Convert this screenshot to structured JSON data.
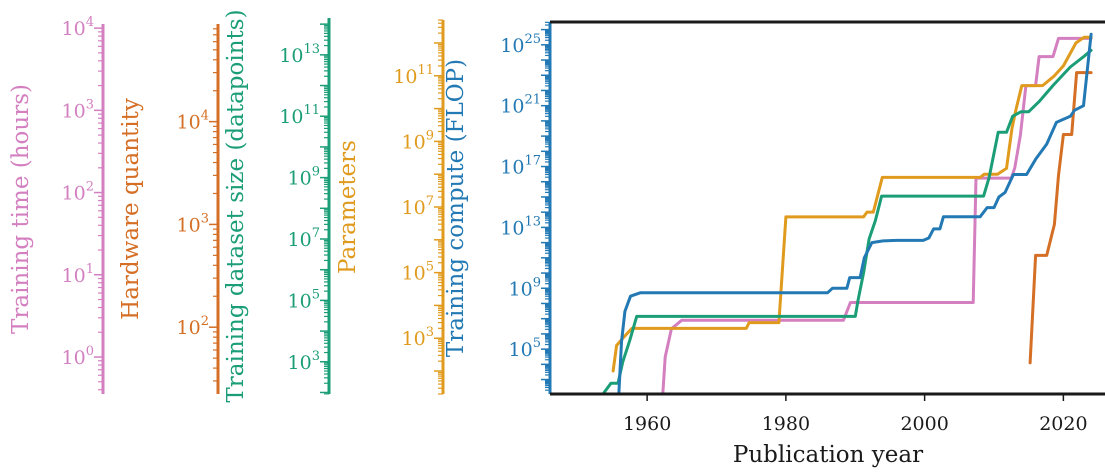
{
  "chart_data": {
    "type": "line",
    "xlabel": "Publication year",
    "xlim": [
      1946,
      2026
    ],
    "x_ticks": [
      1960,
      1980,
      2000,
      2020
    ],
    "grid": false,
    "legend": "none",
    "side_axes": [
      {
        "key": "training_time",
        "label": "Training time (hours)",
        "color": "#d37fc0",
        "scale": "log",
        "ticks": [
          {
            "value": 1,
            "base": "10",
            "exp": "0"
          },
          {
            "value": 10,
            "base": "10",
            "exp": "1"
          },
          {
            "value": 100,
            "base": "10",
            "exp": "2"
          },
          {
            "value": 1000,
            "base": "10",
            "exp": "3"
          },
          {
            "value": 10000,
            "base": "10",
            "exp": "4"
          }
        ]
      },
      {
        "key": "hardware_quantity",
        "label": "Hardware quantity",
        "color": "#d46f25",
        "scale": "log",
        "ticks": [
          {
            "value": 100,
            "base": "10",
            "exp": "2"
          },
          {
            "value": 1000,
            "base": "10",
            "exp": "3"
          },
          {
            "value": 10000,
            "base": "10",
            "exp": "4"
          }
        ]
      },
      {
        "key": "dataset_size",
        "label": "Training dataset size (datapoints)",
        "color": "#1b9e77",
        "scale": "log",
        "ticks": [
          {
            "value": 1000.0,
            "base": "10",
            "exp": "3"
          },
          {
            "value": 100000.0,
            "base": "10",
            "exp": "5"
          },
          {
            "value": 10000000.0,
            "base": "10",
            "exp": "7"
          },
          {
            "value": 1000000000.0,
            "base": "10",
            "exp": "9"
          },
          {
            "value": 100000000000.0,
            "base": "10",
            "exp": "11"
          },
          {
            "value": 10000000000000.0,
            "base": "10",
            "exp": "13"
          }
        ]
      },
      {
        "key": "parameters",
        "label": "Parameters",
        "color": "#e09b1e",
        "scale": "log",
        "ticks": [
          {
            "value": 1000.0,
            "base": "10",
            "exp": "3"
          },
          {
            "value": 100000.0,
            "base": "10",
            "exp": "5"
          },
          {
            "value": 10000000.0,
            "base": "10",
            "exp": "7"
          },
          {
            "value": 1000000000.0,
            "base": "10",
            "exp": "9"
          },
          {
            "value": 100000000000.0,
            "base": "10",
            "exp": "11"
          }
        ]
      },
      {
        "key": "compute",
        "label": "Training compute (FLOP)",
        "color": "#2379b4",
        "scale": "log",
        "ticks": [
          {
            "value": 100000.0,
            "base": "10",
            "exp": "5"
          },
          {
            "value": 1000000000.0,
            "base": "10",
            "exp": "9"
          },
          {
            "value": 10000000000000.0,
            "base": "10",
            "exp": "13"
          },
          {
            "value": 1e+17,
            "base": "10",
            "exp": "17"
          },
          {
            "value": 1e+21,
            "base": "10",
            "exp": "21"
          },
          {
            "value": 1e+25,
            "base": "10",
            "exp": "25"
          }
        ]
      }
    ],
    "series": [
      {
        "axis": "training_time",
        "color": "#d37fc0",
        "points": [
          [
            1962.2,
            0.3
          ],
          [
            1962.6,
            1.0
          ],
          [
            1963.5,
            2.2
          ],
          [
            1965,
            2.8
          ],
          [
            1970,
            2.8
          ],
          [
            1980,
            2.8
          ],
          [
            1988.3,
            2.8
          ],
          [
            1989.3,
            4.6
          ],
          [
            2000,
            4.6
          ],
          [
            2007,
            4.6
          ],
          [
            2007.4,
            150
          ],
          [
            2010,
            150
          ],
          [
            2011,
            150
          ],
          [
            2012.5,
            150
          ],
          [
            2013,
            200
          ],
          [
            2013.8,
            500
          ],
          [
            2014.6,
            2000
          ],
          [
            2016,
            2000
          ],
          [
            2016.5,
            4500
          ],
          [
            2018.5,
            4500
          ],
          [
            2019.3,
            7500
          ],
          [
            2024,
            7500
          ]
        ]
      },
      {
        "axis": "hardware_quantity",
        "color": "#d46f25",
        "points": [
          [
            2015.2,
            45
          ],
          [
            2016,
            500
          ],
          [
            2017.6,
            500
          ],
          [
            2018.7,
            1000
          ],
          [
            2019.3,
            3000
          ],
          [
            2020,
            7500
          ],
          [
            2021.2,
            7500
          ],
          [
            2021.9,
            30000
          ],
          [
            2024,
            30000
          ]
        ]
      },
      {
        "axis": "dataset_size",
        "color": "#1b9e77",
        "points": [
          [
            1953.8,
            100
          ],
          [
            1954.8,
            200
          ],
          [
            1955.8,
            200
          ],
          [
            1956.5,
            1000
          ],
          [
            1957.5,
            5000
          ],
          [
            1958.5,
            30000
          ],
          [
            1960,
            30000
          ],
          [
            1980,
            30000
          ],
          [
            1990,
            30000
          ],
          [
            1990.4,
            100000
          ],
          [
            1991.2,
            800000
          ],
          [
            1992,
            10000000
          ],
          [
            1992.9,
            40000000
          ],
          [
            1993.8,
            250000000
          ],
          [
            2000,
            250000000
          ],
          [
            2005,
            250000000
          ],
          [
            2008.5,
            250000000
          ],
          [
            2009.3,
            1000000000
          ],
          [
            2010.6,
            30000000000
          ],
          [
            2011.8,
            30000000000
          ],
          [
            2012.7,
            100000000000
          ],
          [
            2013.9,
            140000000000
          ],
          [
            2015,
            140000000000
          ],
          [
            2016.5,
            300000000000
          ],
          [
            2018.5,
            1000000000000
          ],
          [
            2021,
            4000000000000
          ],
          [
            2023,
            9000000000000
          ],
          [
            2024,
            14000000000000
          ]
        ]
      },
      {
        "axis": "parameters",
        "color": "#e09b1e",
        "points": [
          [
            1955.1,
            100
          ],
          [
            1955.6,
            600
          ],
          [
            1956.5,
            1000
          ],
          [
            1957.8,
            2000
          ],
          [
            1960,
            2000
          ],
          [
            1974.3,
            2000
          ],
          [
            1974.7,
            3000
          ],
          [
            1979,
            3000
          ],
          [
            1980,
            5000000
          ],
          [
            1990,
            5000000
          ],
          [
            1991.2,
            5000000
          ],
          [
            1991.7,
            7000000
          ],
          [
            1992.6,
            7000000
          ],
          [
            1993.9,
            80000000
          ],
          [
            2000,
            80000000
          ],
          [
            2005,
            80000000
          ],
          [
            2008,
            80000000
          ],
          [
            2008.6,
            100000000
          ],
          [
            2010.5,
            100000000
          ],
          [
            2011.8,
            150000000
          ],
          [
            2012.6,
            2500000000
          ],
          [
            2013.2,
            10000000000
          ],
          [
            2014,
            50000000000
          ],
          [
            2015,
            50000000000
          ],
          [
            2017,
            50000000000
          ],
          [
            2018.7,
            100000000000
          ],
          [
            2020,
            200000000000
          ],
          [
            2021.8,
            1000000000000
          ],
          [
            2023,
            1500000000000
          ],
          [
            2024,
            1500000000000
          ]
        ]
      },
      {
        "axis": "compute",
        "color": "#2379b4",
        "points": [
          [
            1955.8,
            10
          ],
          [
            1956.3,
            300000
          ],
          [
            1956.8,
            30000000
          ],
          [
            1957.6,
            300000000
          ],
          [
            1959,
            500000000
          ],
          [
            1960,
            500000000
          ],
          [
            1980,
            500000000
          ],
          [
            1986,
            500000000
          ],
          [
            1986.7,
            1000000000
          ],
          [
            1988.8,
            1000000000
          ],
          [
            1989.2,
            5000000000
          ],
          [
            1990,
            5000000000
          ],
          [
            1990.7,
            5000000000
          ],
          [
            1991.3,
            100000000000
          ],
          [
            1992.4,
            1000000000000
          ],
          [
            1994,
            1300000000000
          ],
          [
            1996,
            1400000000000
          ],
          [
            1999.8,
            1400000000000
          ],
          [
            2000.6,
            2000000000000
          ],
          [
            2001.3,
            8000000000000
          ],
          [
            2002.2,
            8000000000000
          ],
          [
            2002.7,
            50000000000000
          ],
          [
            2004,
            50000000000000
          ],
          [
            2007,
            50000000000000
          ],
          [
            2008,
            50000000000000
          ],
          [
            2009,
            200000000000000
          ],
          [
            2010,
            200000000000000
          ],
          [
            2010.7,
            1000000000000000
          ],
          [
            2011.6,
            2000000000000000
          ],
          [
            2012.8,
            30000000000000000
          ],
          [
            2014.7,
            30000000000000000
          ],
          [
            2016,
            300000000000000000
          ],
          [
            2017.6,
            3000000000000000000
          ],
          [
            2019,
            80000000000000000000
          ],
          [
            2021,
            200000000000000000000
          ],
          [
            2021.6,
            500000000000000000000
          ],
          [
            2022.9,
            1000000000000000000000
          ],
          [
            2024,
            50000000000000000000000000
          ]
        ]
      }
    ]
  }
}
